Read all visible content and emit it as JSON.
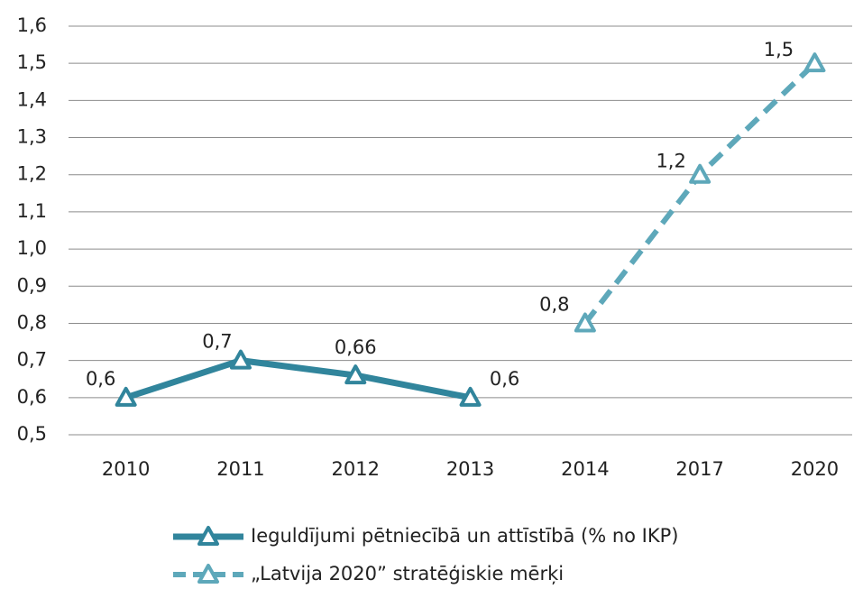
{
  "chart_data": {
    "type": "line",
    "categories": [
      "2010",
      "2011",
      "2012",
      "2013",
      "2014",
      "2017",
      "2020"
    ],
    "series": [
      {
        "name": "Ieguldījumi pētniecībā un attīstībā (% no IKP)",
        "color": "#31859c",
        "dashed": false,
        "values": [
          0.6,
          0.7,
          0.66,
          0.6,
          null,
          null,
          null
        ],
        "value_labels": [
          "0,6",
          "0,7",
          "0,66",
          "0,6",
          null,
          null,
          null
        ]
      },
      {
        "name": "„Latvija 2020” stratēģiskie mērķi",
        "color": "#5ea8ba",
        "dashed": true,
        "values": [
          null,
          null,
          null,
          null,
          0.8,
          1.2,
          1.5
        ],
        "value_labels": [
          null,
          null,
          null,
          null,
          "0,8",
          "1,2",
          "1,5"
        ]
      }
    ],
    "ylim": [
      0.5,
      1.6
    ],
    "yticks": [
      {
        "value": 0.5,
        "label": "0,5"
      },
      {
        "value": 0.6,
        "label": "0,6"
      },
      {
        "value": 0.7,
        "label": "0,7"
      },
      {
        "value": 0.8,
        "label": "0,8"
      },
      {
        "value": 0.9,
        "label": "0,9"
      },
      {
        "value": 1.0,
        "label": "1,0"
      },
      {
        "value": 1.1,
        "label": "1,1"
      },
      {
        "value": 1.2,
        "label": "1,2"
      },
      {
        "value": 1.3,
        "label": "1,3"
      },
      {
        "value": 1.4,
        "label": "1,4"
      },
      {
        "value": 1.5,
        "label": "1,5"
      },
      {
        "value": 1.6,
        "label": "1,6"
      }
    ],
    "grid": true
  }
}
